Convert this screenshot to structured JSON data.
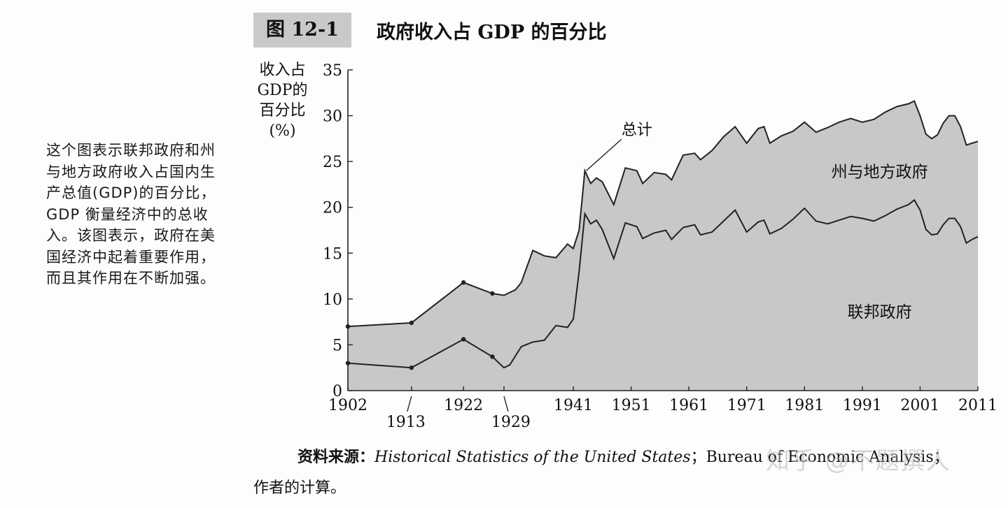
{
  "figure": {
    "label": "图 12-1",
    "title": "政府收入占 GDP 的百分比"
  },
  "side_note": "这个图表示联邦政府和州与地方政府收入占国内生产总值(GDP)的百分比，GDP 衡量经济中的总收入。该图表示，政府在美国经济中起着重要作用，而且其作用在不断加强。",
  "source": {
    "lead": "资料来源：",
    "book": "Historical Statistics of the United States",
    "rest": "；Bureau of Economic Analysis；",
    "cont": "作者的计算。"
  },
  "watermark": "知乎 @不题撰人",
  "colors": {
    "fill": "#c8c8c8",
    "line": "#222222",
    "background": "#fdfdfb"
  },
  "chart_data": {
    "type": "area",
    "ylabel_lines": [
      "收入占",
      "GDP的",
      "百分比",
      "(%)"
    ],
    "ylim": [
      0,
      35
    ],
    "yticks": [
      0,
      5,
      10,
      15,
      20,
      25,
      30,
      35
    ],
    "xlim": [
      1902,
      2011
    ],
    "xticks": [
      {
        "value": 1902,
        "label": "1902",
        "row": 0
      },
      {
        "value": 1913,
        "label": "1913",
        "row": 1
      },
      {
        "value": 1922,
        "label": "1922",
        "row": 0
      },
      {
        "value": 1929,
        "label": "1929",
        "row": 1
      },
      {
        "value": 1941,
        "label": "1941",
        "row": 0
      },
      {
        "value": 1951,
        "label": "1951",
        "row": 0
      },
      {
        "value": 1961,
        "label": "1961",
        "row": 0
      },
      {
        "value": 1971,
        "label": "1971",
        "row": 0
      },
      {
        "value": 1981,
        "label": "1981",
        "row": 0
      },
      {
        "value": 1991,
        "label": "1991",
        "row": 0
      },
      {
        "value": 2001,
        "label": "2001",
        "row": 0
      },
      {
        "value": 2011,
        "label": "2011",
        "row": 0
      }
    ],
    "grid": false,
    "area_labels": [
      {
        "text": "州与地方政府",
        "x": 1994,
        "y": 23.3
      },
      {
        "text": "联邦政府",
        "x": 1994,
        "y": 8.0
      }
    ],
    "annotation": {
      "text": "总计",
      "x": 1952,
      "y": 28.5,
      "point_x": 1943,
      "point_y": 24.0
    },
    "markers_x": [
      1902,
      1913,
      1922,
      1927
    ],
    "series": [
      {
        "name": "总计",
        "points": [
          [
            1902,
            7.0
          ],
          [
            1913,
            7.4
          ],
          [
            1922,
            11.8
          ],
          [
            1927,
            10.6
          ],
          [
            1929,
            10.4
          ],
          [
            1931,
            11.0
          ],
          [
            1932,
            11.8
          ],
          [
            1934,
            15.3
          ],
          [
            1936,
            14.7
          ],
          [
            1938,
            14.5
          ],
          [
            1940,
            16.0
          ],
          [
            1941,
            15.5
          ],
          [
            1942,
            17.5
          ],
          [
            1943,
            24.0
          ],
          [
            1944,
            22.6
          ],
          [
            1945,
            23.2
          ],
          [
            1946,
            22.8
          ],
          [
            1948,
            20.3
          ],
          [
            1950,
            24.3
          ],
          [
            1952,
            24.0
          ],
          [
            1953,
            22.6
          ],
          [
            1955,
            23.8
          ],
          [
            1957,
            23.6
          ],
          [
            1958,
            23.0
          ],
          [
            1960,
            25.7
          ],
          [
            1962,
            25.9
          ],
          [
            1963,
            25.2
          ],
          [
            1965,
            26.2
          ],
          [
            1967,
            27.7
          ],
          [
            1969,
            28.8
          ],
          [
            1971,
            27.0
          ],
          [
            1973,
            28.6
          ],
          [
            1974,
            28.8
          ],
          [
            1975,
            27.0
          ],
          [
            1977,
            27.8
          ],
          [
            1979,
            28.3
          ],
          [
            1981,
            29.3
          ],
          [
            1983,
            28.2
          ],
          [
            1985,
            28.7
          ],
          [
            1987,
            29.3
          ],
          [
            1989,
            29.7
          ],
          [
            1991,
            29.3
          ],
          [
            1993,
            29.6
          ],
          [
            1995,
            30.4
          ],
          [
            1997,
            31.0
          ],
          [
            1999,
            31.3
          ],
          [
            2000,
            31.6
          ],
          [
            2001,
            30.0
          ],
          [
            2002,
            28.0
          ],
          [
            2003,
            27.5
          ],
          [
            2004,
            27.9
          ],
          [
            2005,
            29.2
          ],
          [
            2006,
            30.0
          ],
          [
            2007,
            30.0
          ],
          [
            2008,
            28.8
          ],
          [
            2009,
            26.8
          ],
          [
            2010,
            27.0
          ],
          [
            2011,
            27.2
          ]
        ]
      },
      {
        "name": "联邦政府",
        "points": [
          [
            1902,
            3.0
          ],
          [
            1913,
            2.5
          ],
          [
            1922,
            5.6
          ],
          [
            1927,
            3.7
          ],
          [
            1929,
            2.5
          ],
          [
            1930,
            2.8
          ],
          [
            1932,
            4.8
          ],
          [
            1934,
            5.3
          ],
          [
            1936,
            5.5
          ],
          [
            1938,
            7.1
          ],
          [
            1940,
            6.9
          ],
          [
            1941,
            7.8
          ],
          [
            1942,
            13.0
          ],
          [
            1943,
            19.3
          ],
          [
            1944,
            18.2
          ],
          [
            1945,
            18.6
          ],
          [
            1946,
            17.6
          ],
          [
            1948,
            14.4
          ],
          [
            1950,
            18.3
          ],
          [
            1952,
            17.9
          ],
          [
            1953,
            16.6
          ],
          [
            1955,
            17.2
          ],
          [
            1957,
            17.5
          ],
          [
            1958,
            16.5
          ],
          [
            1960,
            17.8
          ],
          [
            1962,
            18.1
          ],
          [
            1963,
            17.0
          ],
          [
            1965,
            17.3
          ],
          [
            1967,
            18.5
          ],
          [
            1969,
            19.7
          ],
          [
            1971,
            17.3
          ],
          [
            1973,
            18.4
          ],
          [
            1974,
            18.6
          ],
          [
            1975,
            17.1
          ],
          [
            1977,
            17.7
          ],
          [
            1979,
            18.7
          ],
          [
            1981,
            19.9
          ],
          [
            1983,
            18.5
          ],
          [
            1985,
            18.2
          ],
          [
            1987,
            18.6
          ],
          [
            1989,
            19.0
          ],
          [
            1991,
            18.8
          ],
          [
            1993,
            18.5
          ],
          [
            1995,
            19.1
          ],
          [
            1997,
            19.8
          ],
          [
            1999,
            20.3
          ],
          [
            2000,
            20.8
          ],
          [
            2001,
            19.7
          ],
          [
            2002,
            17.6
          ],
          [
            2003,
            17.0
          ],
          [
            2004,
            17.1
          ],
          [
            2005,
            18.1
          ],
          [
            2006,
            18.8
          ],
          [
            2007,
            18.8
          ],
          [
            2008,
            17.9
          ],
          [
            2009,
            16.1
          ],
          [
            2010,
            16.5
          ],
          [
            2011,
            16.8
          ]
        ]
      }
    ]
  }
}
